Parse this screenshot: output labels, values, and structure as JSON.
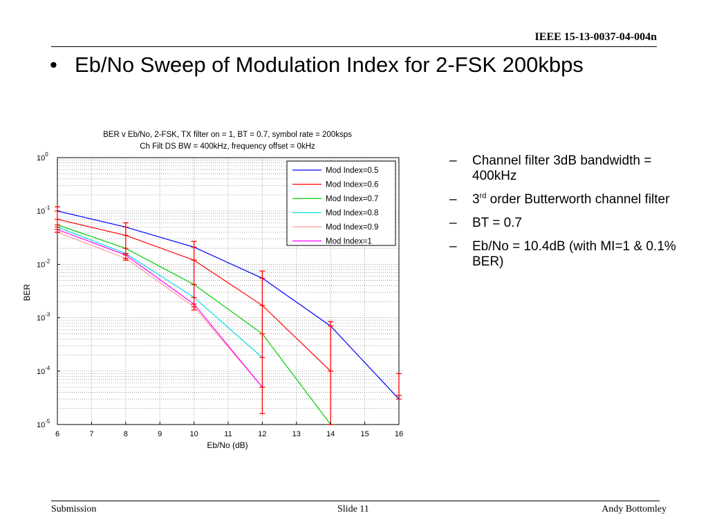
{
  "header": {
    "doc_id": "IEEE 15-13-0037-04-004n"
  },
  "slide": {
    "bullet": "•",
    "title": "Eb/No Sweep of Modulation Index for 2-FSK 200kbps"
  },
  "notes": [
    {
      "dash": "–",
      "text": "Channel filter 3dB bandwidth =  400kHz"
    },
    {
      "dash": "–",
      "pre": "3",
      "sup": "rd",
      "post": " order Butterworth channel filter"
    },
    {
      "dash": "–",
      "text": "BT = 0.7"
    },
    {
      "dash": "–",
      "text": "Eb/No = 10.4dB (with MI=1 & 0.1% BER)"
    }
  ],
  "footer": {
    "left": "Submission",
    "center": "Slide 11",
    "right": "Andy Bottomley"
  },
  "chart_data": {
    "type": "line",
    "title": "BER v Eb/No, 2-FSK, TX filter on = 1, BT = 0.7, symbol rate = 200ksps",
    "subtitle": "Ch Filt DS BW = 400kHz, frequency offset = 0kHz",
    "xlabel": "Eb/No (dB)",
    "ylabel": "BER",
    "xlim": [
      6,
      16
    ],
    "ylim": [
      1e-05,
      1
    ],
    "y_scale": "log",
    "x_ticks": [
      "6",
      "7",
      "8",
      "9",
      "10",
      "11",
      "12",
      "13",
      "14",
      "15",
      "16"
    ],
    "y_tick_exponents": [
      "0",
      "-1",
      "-2",
      "-3",
      "-4",
      "-5"
    ],
    "y_tick_base": "10",
    "grid": true,
    "legend_position": "top-right",
    "series": [
      {
        "name": "Mod Index=0.5",
        "color": "#0000ff",
        "x": [
          6,
          8,
          10,
          12,
          14,
          16
        ],
        "y": [
          0.1,
          0.05,
          0.021,
          0.0055,
          0.0007,
          3e-05
        ]
      },
      {
        "name": "Mod Index=0.6",
        "color": "#ff0000",
        "x": [
          6,
          8,
          10,
          12,
          14
        ],
        "y": [
          0.07,
          0.035,
          0.012,
          0.0017,
          0.0001
        ]
      },
      {
        "name": "Mod Index=0.7",
        "color": "#00cc00",
        "x": [
          6,
          8,
          10,
          12,
          14
        ],
        "y": [
          0.055,
          0.02,
          0.0042,
          0.0005,
          1e-05
        ]
      },
      {
        "name": "Mod Index=0.8",
        "color": "#00dddd",
        "x": [
          6,
          8,
          10,
          12
        ],
        "y": [
          0.05,
          0.016,
          0.0024,
          0.00018
        ]
      },
      {
        "name": "Mod Index=0.9",
        "color": "#ff9999",
        "x": [
          6,
          8,
          10,
          12
        ],
        "y": [
          0.04,
          0.013,
          0.0016,
          5e-05
        ]
      },
      {
        "name": "Mod Index=1",
        "color": "#ff00ff",
        "x": [
          6,
          8,
          10,
          12
        ],
        "y": [
          0.045,
          0.015,
          0.0018,
          5e-05
        ]
      }
    ],
    "error_bars": {
      "color": "#ff0000",
      "bars": [
        {
          "x": 6,
          "low": 0.04,
          "high": 0.12
        },
        {
          "x": 8,
          "low": 0.012,
          "high": 0.06
        },
        {
          "x": 10,
          "low": 0.0014,
          "high": 0.027
        },
        {
          "x": 12,
          "low": 1.6e-05,
          "high": 0.0075
        },
        {
          "x": 14,
          "low": 1e-05,
          "high": 0.00085
        },
        {
          "x": 16,
          "low": 3.5e-05,
          "high": 9e-05
        }
      ]
    }
  }
}
